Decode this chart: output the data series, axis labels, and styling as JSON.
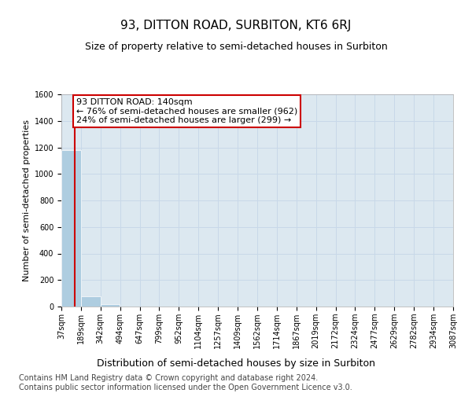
{
  "title": "93, DITTON ROAD, SURBITON, KT6 6RJ",
  "subtitle": "Size of property relative to semi-detached houses in Surbiton",
  "xlabel": "Distribution of semi-detached houses by size in Surbiton",
  "ylabel": "Number of semi-detached properties",
  "footer_line1": "Contains HM Land Registry data © Crown copyright and database right 2024.",
  "footer_line2": "Contains public sector information licensed under the Open Government Licence v3.0.",
  "annotation_line1": "93 DITTON ROAD: 140sqm",
  "annotation_line2": "← 76% of semi-detached houses are smaller (962)",
  "annotation_line3": "24% of semi-detached houses are larger (299) →",
  "subject_size_sqm": 140,
  "bin_edges": [
    37,
    189,
    342,
    494,
    647,
    799,
    952,
    1104,
    1257,
    1409,
    1562,
    1714,
    1867,
    2019,
    2172,
    2324,
    2477,
    2629,
    2782,
    2934,
    3087
  ],
  "bar_heights": [
    1180,
    80,
    20,
    0,
    0,
    0,
    0,
    0,
    0,
    0,
    0,
    0,
    0,
    0,
    0,
    0,
    0,
    0,
    0,
    0
  ],
  "tick_labels": [
    "37sqm",
    "189sqm",
    "342sqm",
    "494sqm",
    "647sqm",
    "799sqm",
    "952sqm",
    "1104sqm",
    "1257sqm",
    "1409sqm",
    "1562sqm",
    "1714sqm",
    "1867sqm",
    "2019sqm",
    "2172sqm",
    "2324sqm",
    "2477sqm",
    "2629sqm",
    "2782sqm",
    "2934sqm",
    "3087sqm"
  ],
  "bar_color": "#aecde0",
  "subject_line_color": "#cc0000",
  "grid_color": "#c8d8e8",
  "background_color": "#dce8f0",
  "ylim": [
    0,
    1600
  ],
  "yticks": [
    0,
    200,
    400,
    600,
    800,
    1000,
    1200,
    1400,
    1600
  ],
  "title_fontsize": 11,
  "subtitle_fontsize": 9,
  "xlabel_fontsize": 9,
  "ylabel_fontsize": 8,
  "tick_fontsize": 7,
  "footer_fontsize": 7,
  "annotation_fontsize": 8
}
